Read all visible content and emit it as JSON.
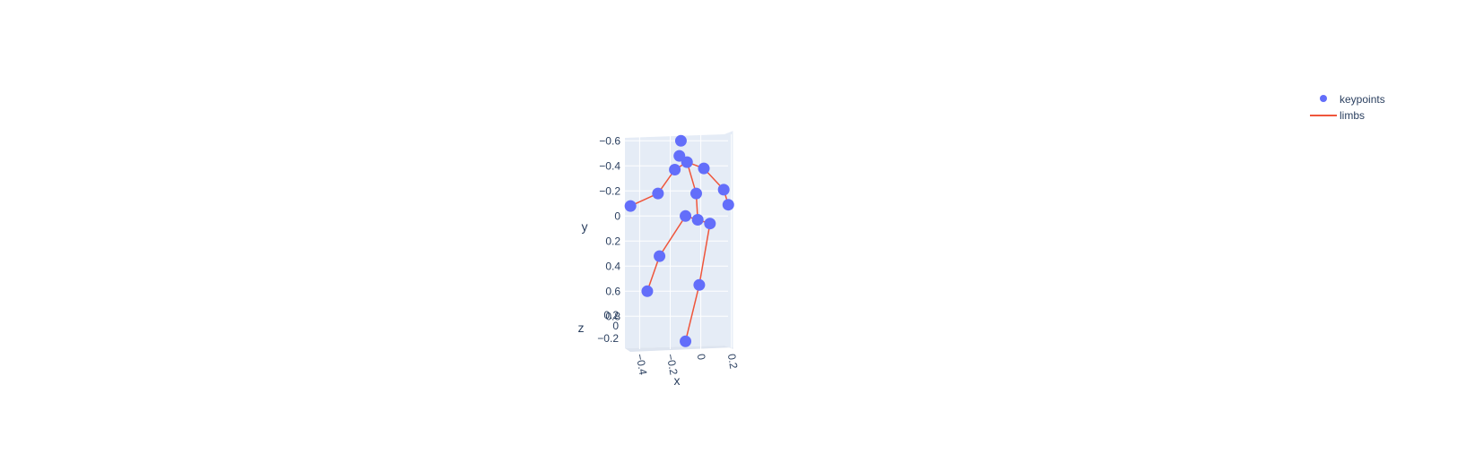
{
  "chart_data": {
    "type": "scatter3d",
    "legend": {
      "position": "top-right",
      "entries": [
        {
          "name": "keypoints",
          "kind": "marker"
        },
        {
          "name": "limbs",
          "kind": "line"
        }
      ]
    },
    "colors": {
      "keypoints": "#636efa",
      "limbs": "#ef553b",
      "plot_bg": "#e5ecf6",
      "grid": "#ffffff",
      "text": "#2a3f5f"
    },
    "axes": {
      "x": {
        "label": "x",
        "ticks": [
          "−0.4",
          "−0.2",
          "0",
          "0.2"
        ],
        "range": [
          -0.47,
          0.22
        ]
      },
      "y": {
        "label": "y",
        "ticks": [
          "−0.6",
          "−0.4",
          "−0.2",
          "0",
          "0.2",
          "0.4",
          "0.6",
          "0.8"
        ],
        "range": [
          -0.6,
          0.8
        ],
        "reversed": true
      },
      "z": {
        "label": "z",
        "ticks": [
          "0.2",
          "0",
          "−0.2"
        ],
        "range": [
          -0.2,
          0.2
        ]
      }
    },
    "keypoints": [
      {
        "x": -0.13,
        "y": -0.6
      },
      {
        "x": -0.14,
        "y": -0.48
      },
      {
        "x": -0.09,
        "y": -0.43
      },
      {
        "x": -0.17,
        "y": -0.37
      },
      {
        "x": 0.02,
        "y": -0.38
      },
      {
        "x": -0.28,
        "y": -0.18
      },
      {
        "x": 0.15,
        "y": -0.21
      },
      {
        "x": -0.46,
        "y": -0.08
      },
      {
        "x": 0.18,
        "y": -0.09
      },
      {
        "x": -0.03,
        "y": -0.18
      },
      {
        "x": -0.1,
        "y": 0.0
      },
      {
        "x": -0.02,
        "y": 0.03
      },
      {
        "x": 0.06,
        "y": 0.06
      },
      {
        "x": -0.27,
        "y": 0.32
      },
      {
        "x": -0.01,
        "y": 0.55
      },
      {
        "x": -0.35,
        "y": 0.6
      },
      {
        "x": -0.1,
        "y": 1.0
      }
    ],
    "limbs": [
      [
        2,
        3
      ],
      [
        3,
        5
      ],
      [
        5,
        7
      ],
      [
        2,
        4
      ],
      [
        4,
        6
      ],
      [
        6,
        8
      ],
      [
        2,
        9
      ],
      [
        9,
        11
      ],
      [
        11,
        10
      ],
      [
        10,
        13
      ],
      [
        13,
        15
      ],
      [
        11,
        12
      ],
      [
        12,
        14
      ],
      [
        14,
        16
      ]
    ]
  }
}
